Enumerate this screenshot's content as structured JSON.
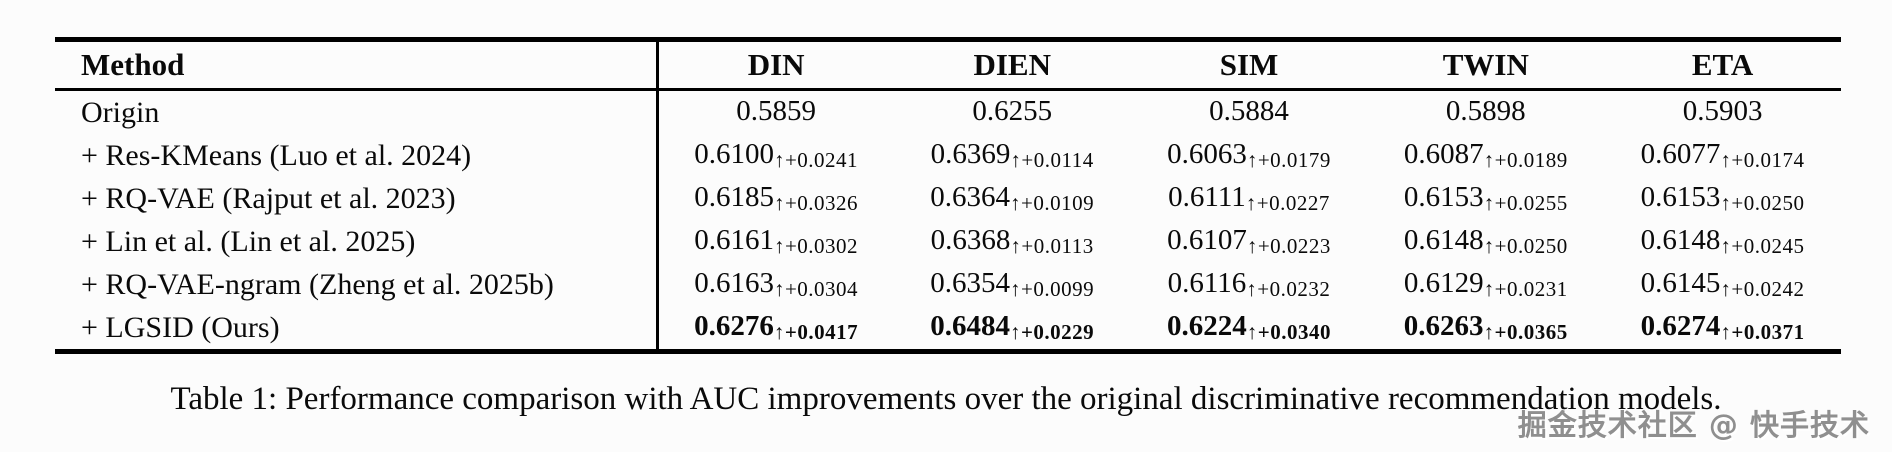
{
  "table": {
    "columns": [
      "Method",
      "DIN",
      "DIEN",
      "SIM",
      "TWIN",
      "ETA"
    ],
    "rows": [
      {
        "method": "Origin",
        "cells": [
          {
            "v": "0.5859",
            "s": ""
          },
          {
            "v": "0.6255",
            "s": ""
          },
          {
            "v": "0.5884",
            "s": ""
          },
          {
            "v": "0.5898",
            "s": ""
          },
          {
            "v": "0.5903",
            "s": ""
          }
        ]
      },
      {
        "method": "+ Res-KMeans (Luo et al. 2024)",
        "cells": [
          {
            "v": "0.6100",
            "s": "↑+0.0241"
          },
          {
            "v": "0.6369",
            "s": "↑+0.0114"
          },
          {
            "v": "0.6063",
            "s": "↑+0.0179"
          },
          {
            "v": "0.6087",
            "s": "↑+0.0189"
          },
          {
            "v": "0.6077",
            "s": "↑+0.0174"
          }
        ]
      },
      {
        "method": "+ RQ-VAE (Rajput et al. 2023)",
        "cells": [
          {
            "v": "0.6185",
            "s": "↑+0.0326"
          },
          {
            "v": "0.6364",
            "s": "↑+0.0109"
          },
          {
            "v": "0.6111",
            "s": "↑+0.0227"
          },
          {
            "v": "0.6153",
            "s": "↑+0.0255"
          },
          {
            "v": "0.6153",
            "s": "↑+0.0250"
          }
        ]
      },
      {
        "method": "+ Lin et al. (Lin et al. 2025)",
        "cells": [
          {
            "v": "0.6161",
            "s": "↑+0.0302"
          },
          {
            "v": "0.6368",
            "s": "↑+0.0113"
          },
          {
            "v": "0.6107",
            "s": "↑+0.0223"
          },
          {
            "v": "0.6148",
            "s": "↑+0.0250"
          },
          {
            "v": "0.6148",
            "s": "↑+0.0245"
          }
        ]
      },
      {
        "method": "+ RQ-VAE-ngram (Zheng et al. 2025b)",
        "cells": [
          {
            "v": "0.6163",
            "s": "↑+0.0304"
          },
          {
            "v": "0.6354",
            "s": "↑+0.0099"
          },
          {
            "v": "0.6116",
            "s": "↑+0.0232"
          },
          {
            "v": "0.6129",
            "s": "↑+0.0231"
          },
          {
            "v": "0.6145",
            "s": "↑+0.0242"
          }
        ]
      },
      {
        "method": "+ LGSID (Ours)",
        "cells": [
          {
            "v": "0.6276",
            "s": "↑+0.0417"
          },
          {
            "v": "0.6484",
            "s": "↑+0.0229"
          },
          {
            "v": "0.6224",
            "s": "↑+0.0340"
          },
          {
            "v": "0.6263",
            "s": "↑+0.0365"
          },
          {
            "v": "0.6274",
            "s": "↑+0.0371"
          }
        ]
      }
    ]
  },
  "caption": "Table 1: Performance comparison with AUC improvements over the original discriminative recommendation models.",
  "watermark": "掘金技术社区 @ 快手技术",
  "colors": {
    "text": "#0a0a0a",
    "rule": "#000000",
    "background": "#fcfcfc",
    "watermark": "#8f8f8f"
  }
}
